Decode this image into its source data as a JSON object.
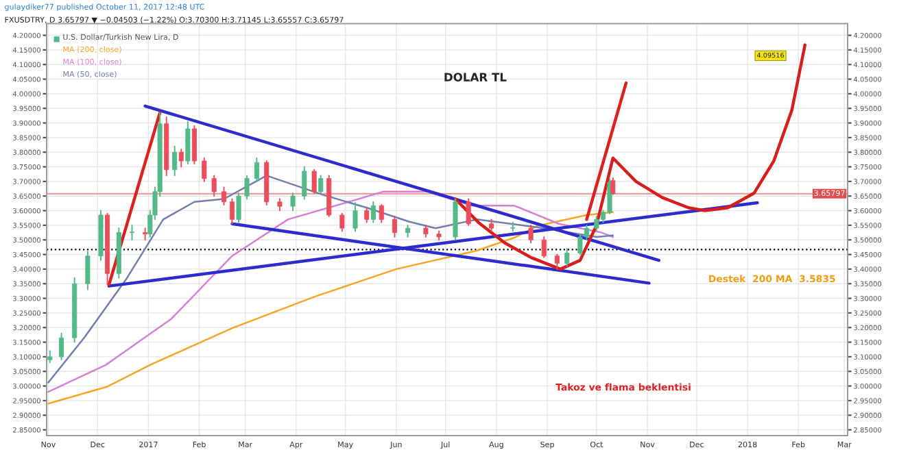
{
  "chart_data": {
    "type": "candlestick",
    "title": "DOLAR TL",
    "subtitle": [
      "gulaydiker77 published October 11, 2017 12:48 UTC",
      "FXUSDTRY, D 3.65797 ▼ −0.04503 (−1.22%) O:3.70300 H:3.71145 L:3.65557 C:3.65797"
    ],
    "series": [
      {
        "name": "U.S. Dollar/Turkish New Lira, D",
        "type": "candlestick",
        "x": [
          "2016-11-02",
          "2016-11-09",
          "2016-11-17",
          "2016-11-25",
          "2016-12-03",
          "2016-12-07",
          "2016-12-14",
          "2016-12-22",
          "2016-12-30",
          "2017-01-02",
          "2017-01-05",
          "2017-01-08",
          "2017-01-12",
          "2017-01-17",
          "2017-01-21",
          "2017-01-25",
          "2017-01-29",
          "2017-02-04",
          "2017-02-10",
          "2017-02-16",
          "2017-02-21",
          "2017-02-25",
          "2017-03-02",
          "2017-03-08",
          "2017-03-14",
          "2017-03-22",
          "2017-03-30",
          "2017-04-06",
          "2017-04-12",
          "2017-04-16",
          "2017-04-21",
          "2017-04-29",
          "2017-05-07",
          "2017-05-14",
          "2017-05-18",
          "2017-05-23",
          "2017-05-31",
          "2017-06-08",
          "2017-06-19",
          "2017-06-27",
          "2017-07-07",
          "2017-07-15",
          "2017-07-29",
          "2017-08-11",
          "2017-08-22",
          "2017-08-30",
          "2017-09-07",
          "2017-09-13",
          "2017-09-21",
          "2017-09-25",
          "2017-10-01",
          "2017-10-05",
          "2017-10-09",
          "2017-10-11"
        ],
        "ohlc": [
          [
            3.09,
            3.12,
            3.08,
            3.1
          ],
          [
            3.1,
            3.18,
            3.09,
            3.165
          ],
          [
            3.165,
            3.37,
            3.15,
            3.35
          ],
          [
            3.35,
            3.46,
            3.33,
            3.445
          ],
          [
            3.445,
            3.6,
            3.43,
            3.585
          ],
          [
            3.585,
            3.59,
            3.347,
            3.385
          ],
          [
            3.385,
            3.54,
            3.37,
            3.525
          ],
          [
            3.525,
            3.55,
            3.5,
            3.525
          ],
          [
            3.525,
            3.54,
            3.5,
            3.52
          ],
          [
            3.52,
            3.6,
            3.51,
            3.585
          ],
          [
            3.585,
            3.68,
            3.57,
            3.665
          ],
          [
            3.665,
            3.935,
            3.65,
            3.897
          ],
          [
            3.897,
            3.92,
            3.72,
            3.74
          ],
          [
            3.74,
            3.82,
            3.72,
            3.8
          ],
          [
            3.8,
            3.81,
            3.75,
            3.77
          ],
          [
            3.77,
            3.905,
            3.76,
            3.88
          ],
          [
            3.88,
            3.89,
            3.76,
            3.77
          ],
          [
            3.77,
            3.78,
            3.7,
            3.71
          ],
          [
            3.71,
            3.72,
            3.65,
            3.665
          ],
          [
            3.665,
            3.68,
            3.62,
            3.63
          ],
          [
            3.63,
            3.64,
            3.555,
            3.57
          ],
          [
            3.57,
            3.66,
            3.56,
            3.65
          ],
          [
            3.65,
            3.72,
            3.64,
            3.71
          ],
          [
            3.71,
            3.78,
            3.7,
            3.765
          ],
          [
            3.765,
            3.77,
            3.62,
            3.63
          ],
          [
            3.63,
            3.64,
            3.6,
            3.615
          ],
          [
            3.615,
            3.66,
            3.6,
            3.65
          ],
          [
            3.65,
            3.75,
            3.64,
            3.735
          ],
          [
            3.735,
            3.74,
            3.66,
            3.665
          ],
          [
            3.665,
            3.72,
            3.66,
            3.71
          ],
          [
            3.71,
            3.72,
            3.58,
            3.585
          ],
          [
            3.585,
            3.59,
            3.53,
            3.54
          ],
          [
            3.54,
            3.627,
            3.53,
            3.6
          ],
          [
            3.6,
            3.61,
            3.56,
            3.57
          ],
          [
            3.57,
            3.63,
            3.56,
            3.617
          ],
          [
            3.617,
            3.62,
            3.56,
            3.57
          ],
          [
            3.57,
            3.58,
            3.51,
            3.525
          ],
          [
            3.525,
            3.55,
            3.51,
            3.54
          ],
          [
            3.54,
            3.55,
            3.51,
            3.52
          ],
          [
            3.52,
            3.53,
            3.5,
            3.51
          ],
          [
            3.51,
            3.64,
            3.5,
            3.63
          ],
          [
            3.63,
            3.64,
            3.55,
            3.555
          ],
          [
            3.555,
            3.57,
            3.53,
            3.54
          ],
          [
            3.54,
            3.56,
            3.53,
            3.54
          ],
          [
            3.54,
            3.55,
            3.49,
            3.5
          ],
          [
            3.5,
            3.51,
            3.44,
            3.445
          ],
          [
            3.445,
            3.45,
            3.4,
            3.42
          ],
          [
            3.42,
            3.47,
            3.41,
            3.455
          ],
          [
            3.455,
            3.52,
            3.45,
            3.51
          ],
          [
            3.51,
            3.55,
            3.5,
            3.54
          ],
          [
            3.54,
            3.58,
            3.53,
            3.57
          ],
          [
            3.57,
            3.6,
            3.56,
            3.595
          ],
          [
            3.595,
            3.71,
            3.59,
            3.697
          ],
          [
            3.703,
            3.71145,
            3.65557,
            3.65797
          ]
        ]
      },
      {
        "name": "MA (200, close)",
        "type": "line",
        "color": "#f5a623",
        "x": [
          "2016-11-01",
          "2016-12-07",
          "2017-01-02",
          "2017-02-21",
          "2017-04-12",
          "2017-06-01",
          "2017-07-20",
          "2017-08-13",
          "2017-08-26",
          "2017-09-25",
          "2017-10-11"
        ],
        "values": [
          2.94,
          2.998,
          3.072,
          3.198,
          3.305,
          3.4,
          3.463,
          3.51,
          3.548,
          3.585,
          3.595
        ]
      },
      {
        "name": "MA (100, close)",
        "type": "line",
        "color": "#d77fd6",
        "x": [
          "2016-11-01",
          "2016-12-06",
          "2017-01-15",
          "2017-02-21",
          "2017-03-27",
          "2017-05-03",
          "2017-05-24",
          "2017-06-20",
          "2017-07-17",
          "2017-08-12",
          "2017-09-08",
          "2017-10-04",
          "2017-10-11"
        ],
        "values": [
          2.98,
          3.072,
          3.23,
          3.445,
          3.57,
          3.63,
          3.665,
          3.665,
          3.617,
          3.617,
          3.555,
          3.525,
          3.51
        ]
      },
      {
        "name": "MA (50, close)",
        "type": "line",
        "color": "#6f7fb0",
        "x": [
          "2016-11-01",
          "2016-11-23",
          "2016-12-19",
          "2017-01-10",
          "2017-01-29",
          "2017-02-16",
          "2017-03-14",
          "2017-04-17",
          "2017-05-14",
          "2017-06-09",
          "2017-06-25",
          "2017-07-20",
          "2017-08-30",
          "2017-10-01",
          "2017-10-11"
        ],
        "values": [
          3.012,
          3.166,
          3.37,
          3.57,
          3.63,
          3.64,
          3.72,
          3.655,
          3.61,
          3.562,
          3.54,
          3.57,
          3.54,
          3.51,
          3.515
        ]
      },
      {
        "type": "line",
        "color": "#2b2bd0",
        "x": [
          "2016-12-30",
          "2017-11-08"
        ],
        "values": [
          3.958,
          3.43
        ]
      },
      {
        "type": "line",
        "color": "#2b2bd0",
        "x": [
          "2017-02-21",
          "2017-11-02"
        ],
        "values": [
          3.555,
          3.352
        ]
      },
      {
        "type": "line",
        "color": "#2b2bd0",
        "x": [
          "2016-12-08",
          "2018-01-07"
        ],
        "values": [
          3.342,
          3.627
        ]
      },
      {
        "type": "line",
        "color": "#e02020",
        "x": [
          "2016-12-08",
          "2017-01-08"
        ],
        "values": [
          3.347,
          3.935
        ]
      },
      {
        "type": "line",
        "color": "#e02020",
        "x": [
          "2017-09-25",
          "2017-10-19"
        ],
        "values": [
          3.57,
          4.037
        ]
      },
      {
        "type": "line",
        "color": "#d91c1c",
        "x": [
          "2017-07-07",
          "2017-07-21",
          "2017-08-06",
          "2017-08-22",
          "2017-09-09",
          "2017-09-21",
          "2017-10-01",
          "2017-10-11",
          "2017-10-25",
          "2017-11-10",
          "2017-11-26",
          "2017-12-06",
          "2017-12-20",
          "2018-01-05",
          "2018-01-17",
          "2018-01-28",
          "2018-02-05"
        ],
        "values": [
          3.64,
          3.56,
          3.49,
          3.44,
          3.4,
          3.43,
          3.55,
          3.78,
          3.7,
          3.645,
          3.61,
          3.6,
          3.61,
          3.66,
          3.77,
          3.944,
          4.167
        ]
      }
    ],
    "xlim": [
      "2016-10-31",
      "2018-03-03"
    ],
    "xticks": [
      {
        "value": "2016-11-01",
        "label": "Nov"
      },
      {
        "value": "2016-12-01",
        "label": "Dec"
      },
      {
        "value": "2017-01-01",
        "label": "2017"
      },
      {
        "value": "2017-02-01",
        "label": "Feb"
      },
      {
        "value": "2017-03-01",
        "label": "Mar"
      },
      {
        "value": "2017-04-01",
        "label": "Apr"
      },
      {
        "value": "2017-05-01",
        "label": "May"
      },
      {
        "value": "2017-06-01",
        "label": "Jun"
      },
      {
        "value": "2017-07-01",
        "label": "Jul"
      },
      {
        "value": "2017-08-01",
        "label": "Aug"
      },
      {
        "value": "2017-09-01",
        "label": "Sep"
      },
      {
        "value": "2017-10-01",
        "label": "Oct"
      },
      {
        "value": "2017-11-01",
        "label": "Nov"
      },
      {
        "value": "2017-12-01",
        "label": "Dec"
      },
      {
        "value": "2018-01-01",
        "label": "2018"
      },
      {
        "value": "2018-02-01",
        "label": "Feb"
      },
      {
        "value": "2018-03-01",
        "label": "Mar"
      }
    ],
    "ylim": [
      2.83,
      4.24
    ],
    "yticks": [
      {
        "value": 4.2,
        "label": "4.20000"
      },
      {
        "value": 4.15,
        "label": "4.15000"
      },
      {
        "value": 4.1,
        "label": "4.10000"
      },
      {
        "value": 4.05,
        "label": "4.05000"
      },
      {
        "value": 4.0,
        "label": "4.00000"
      },
      {
        "value": 3.95,
        "label": "3.95000"
      },
      {
        "value": 3.9,
        "label": "3.90000"
      },
      {
        "value": 3.85,
        "label": "3.85000"
      },
      {
        "value": 3.8,
        "label": "3.80000"
      },
      {
        "value": 3.75,
        "label": "3.75000"
      },
      {
        "value": 3.7,
        "label": "3.70000"
      },
      {
        "value": 3.65,
        "label": "3.65000"
      },
      {
        "value": 3.6,
        "label": "3.60000"
      },
      {
        "value": 3.55,
        "label": "3.55000"
      },
      {
        "value": 3.5,
        "label": "3.50000"
      },
      {
        "value": 3.45,
        "label": "3.45000"
      },
      {
        "value": 3.4,
        "label": "3.40000"
      },
      {
        "value": 3.35,
        "label": "3.35000"
      },
      {
        "value": 3.3,
        "label": "3.30000"
      },
      {
        "value": 3.25,
        "label": "3.25000"
      },
      {
        "value": 3.2,
        "label": "3.20000"
      },
      {
        "value": 3.15,
        "label": "3.15000"
      },
      {
        "value": 3.1,
        "label": "3.10000"
      },
      {
        "value": 3.05,
        "label": "3.05000"
      },
      {
        "value": 3.0,
        "label": "3.00000"
      },
      {
        "value": 2.95,
        "label": "2.95000"
      },
      {
        "value": 2.9,
        "label": "2.90000"
      },
      {
        "value": 2.85,
        "label": "2.85000"
      }
    ],
    "y2lim": [
      2.83,
      4.24
    ],
    "y2ticks": [
      {
        "value": 4.2,
        "label": "4.20000"
      },
      {
        "value": 4.15,
        "label": "4.15000"
      },
      {
        "value": 4.1,
        "label": "4.10000"
      },
      {
        "value": 4.05,
        "label": "4.05000"
      },
      {
        "value": 4.0,
        "label": "4.00000"
      },
      {
        "value": 3.95,
        "label": "3.95000"
      },
      {
        "value": 3.9,
        "label": "3.90000"
      },
      {
        "value": 3.85,
        "label": "3.85000"
      },
      {
        "value": 3.8,
        "label": "3.80000"
      },
      {
        "value": 3.75,
        "label": "3.75000"
      },
      {
        "value": 3.7,
        "label": "3.70000"
      },
      {
        "value": 3.65,
        "label": "3.65000"
      },
      {
        "value": 3.6,
        "label": "3.60000"
      },
      {
        "value": 3.55,
        "label": "3.55000"
      },
      {
        "value": 3.5,
        "label": "3.50000"
      },
      {
        "value": 3.45,
        "label": "3.45000"
      },
      {
        "value": 3.4,
        "label": "3.40000"
      },
      {
        "value": 3.35,
        "label": "3.35000"
      },
      {
        "value": 3.3,
        "label": "3.30000"
      },
      {
        "value": 3.25,
        "label": "3.25000"
      },
      {
        "value": 3.2,
        "label": "3.20000"
      },
      {
        "value": 3.15,
        "label": "3.15000"
      },
      {
        "value": 3.1,
        "label": "3.10000"
      },
      {
        "value": 3.05,
        "label": "3.05000"
      },
      {
        "value": 3.0,
        "label": "3.00000"
      },
      {
        "value": 2.95,
        "label": "2.95000"
      },
      {
        "value": 2.9,
        "label": "2.90000"
      },
      {
        "value": 2.85,
        "label": "2.85000"
      }
    ],
    "ref_lines": [
      {
        "axis": "y",
        "value": 3.467,
        "color": "#000000",
        "line_style": "dotted"
      },
      {
        "axis": "y",
        "value": 3.65797,
        "label": "3.65797",
        "color": "#e8a0a0",
        "line_style": "solid"
      }
    ],
    "annotations": [
      "Destek  200 MA  3.5835",
      "Takoz ve flama beklentisi",
      {
        "text": "4.09516",
        "x": "2018-01-15",
        "y": 4.13
      }
    ],
    "grid": true,
    "legend": "top left"
  }
}
